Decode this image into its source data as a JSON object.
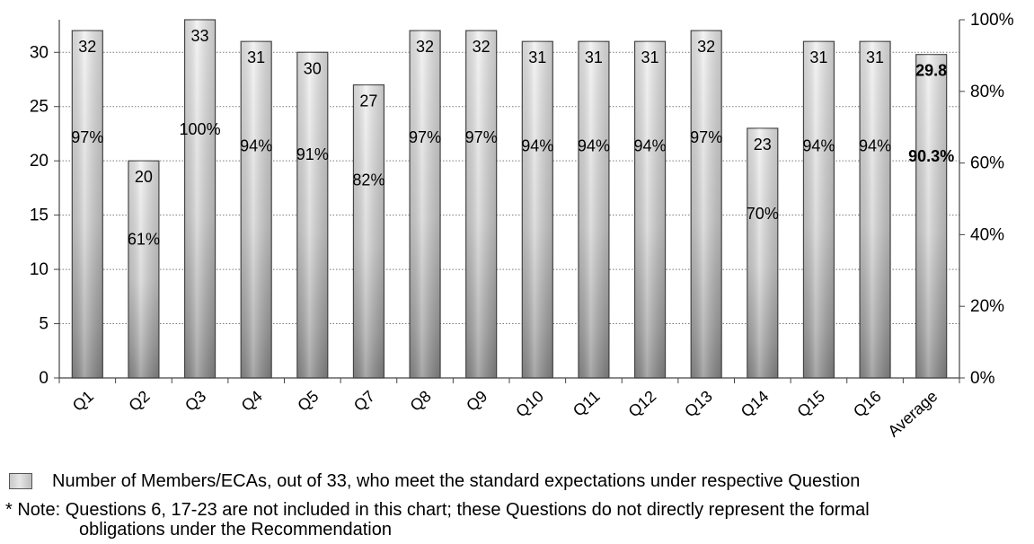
{
  "chart_data": {
    "type": "bar",
    "categories": [
      "Q1",
      "Q2",
      "Q3",
      "Q4",
      "Q5",
      "Q7",
      "Q8",
      "Q9",
      "Q10",
      "Q11",
      "Q12",
      "Q13",
      "Q14",
      "Q15",
      "Q16",
      "Average"
    ],
    "values": [
      32,
      20,
      33,
      31,
      30,
      27,
      32,
      32,
      31,
      31,
      31,
      32,
      23,
      31,
      31,
      29.8
    ],
    "value_labels": [
      "32",
      "20",
      "33",
      "31",
      "30",
      "27",
      "32",
      "32",
      "31",
      "31",
      "31",
      "32",
      "23",
      "31",
      "31",
      "29.8"
    ],
    "percent_labels": [
      "97%",
      "61%",
      "100%",
      "94%",
      "91%",
      "82%",
      "97%",
      "97%",
      "94%",
      "94%",
      "94%",
      "97%",
      "70%",
      "94%",
      "94%",
      "90.3%"
    ],
    "ylim": [
      0,
      33
    ],
    "y_ticks": [
      0,
      5,
      10,
      15,
      20,
      25,
      30
    ],
    "y2_ticks": [
      "0%",
      "20%",
      "40%",
      "60%",
      "80%",
      "100%"
    ],
    "grid": "horizontal dotted",
    "legend_position": "bottom"
  },
  "legend": {
    "label": "Number of Members/ECAs, out of 33, who meet the standard expectations under respective Question"
  },
  "note": {
    "line1": "* Note:  Questions 6, 17-23 are not included in this chart; these Questions do not directly represent the formal",
    "line2": "obligations under the Recommendation"
  },
  "colors": {
    "bar_light": "#f0f0f0",
    "bar_dark": "#8c8c8c",
    "bar_edge": "#4a4a4a"
  }
}
